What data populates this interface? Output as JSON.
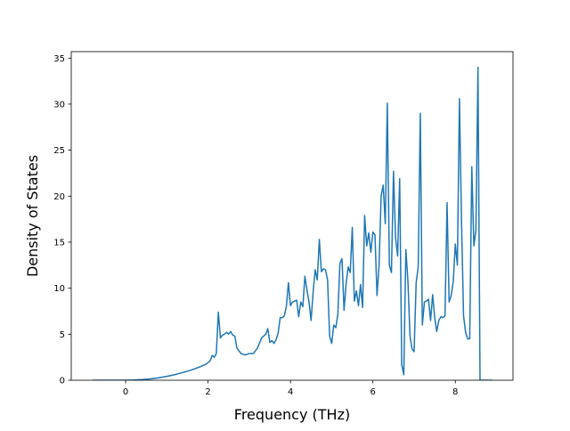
{
  "chart_data": {
    "type": "line",
    "title": "",
    "xlabel": "Frequency (THz)",
    "ylabel": "Density of States",
    "xlim": [
      -1.32,
      9.4
    ],
    "ylim": [
      0,
      35.7
    ],
    "xticks": [
      0,
      2,
      4,
      6,
      8
    ],
    "yticks": [
      0,
      5,
      10,
      15,
      20,
      25,
      30,
      35
    ],
    "grid": false,
    "legend": "none",
    "series": [
      {
        "color": "#1f77b4",
        "points": [
          [
            -0.8,
            0
          ],
          [
            -0.4,
            0
          ],
          [
            0,
            0
          ],
          [
            0.2,
            0.02
          ],
          [
            0.4,
            0.07
          ],
          [
            0.6,
            0.15
          ],
          [
            0.8,
            0.27
          ],
          [
            1.0,
            0.42
          ],
          [
            1.2,
            0.62
          ],
          [
            1.4,
            0.85
          ],
          [
            1.6,
            1.12
          ],
          [
            1.8,
            1.45
          ],
          [
            1.95,
            1.75
          ],
          [
            2.05,
            2.1
          ],
          [
            2.1,
            2.7
          ],
          [
            2.15,
            2.5
          ],
          [
            2.2,
            2.9
          ],
          [
            2.25,
            7.4
          ],
          [
            2.3,
            4.6
          ],
          [
            2.35,
            4.9
          ],
          [
            2.4,
            5.0
          ],
          [
            2.45,
            5.2
          ],
          [
            2.5,
            5.0
          ],
          [
            2.55,
            5.3
          ],
          [
            2.6,
            4.9
          ],
          [
            2.65,
            4.8
          ],
          [
            2.7,
            3.5
          ],
          [
            2.8,
            2.9
          ],
          [
            2.9,
            2.75
          ],
          [
            3.0,
            2.9
          ],
          [
            3.1,
            2.9
          ],
          [
            3.2,
            3.5
          ],
          [
            3.3,
            4.6
          ],
          [
            3.4,
            5.0
          ],
          [
            3.45,
            5.6
          ],
          [
            3.5,
            4.1
          ],
          [
            3.55,
            4.3
          ],
          [
            3.6,
            4.0
          ],
          [
            3.65,
            4.4
          ],
          [
            3.7,
            5.1
          ],
          [
            3.75,
            6.8
          ],
          [
            3.8,
            6.8
          ],
          [
            3.85,
            7.0
          ],
          [
            3.9,
            8.0
          ],
          [
            3.95,
            10.6
          ],
          [
            4.0,
            8.1
          ],
          [
            4.05,
            8.5
          ],
          [
            4.1,
            8.6
          ],
          [
            4.15,
            8.7
          ],
          [
            4.2,
            6.9
          ],
          [
            4.25,
            8.5
          ],
          [
            4.3,
            8.0
          ],
          [
            4.35,
            11.3
          ],
          [
            4.4,
            9.8
          ],
          [
            4.45,
            8.5
          ],
          [
            4.5,
            6.5
          ],
          [
            4.55,
            9.6
          ],
          [
            4.6,
            12.0
          ],
          [
            4.65,
            10.9
          ],
          [
            4.7,
            15.3
          ],
          [
            4.75,
            11.8
          ],
          [
            4.8,
            12.1
          ],
          [
            4.85,
            12.0
          ],
          [
            4.9,
            10.9
          ],
          [
            4.95,
            4.8
          ],
          [
            5.0,
            4.0
          ],
          [
            5.05,
            6.0
          ],
          [
            5.1,
            5.7
          ],
          [
            5.15,
            7.2
          ],
          [
            5.2,
            12.7
          ],
          [
            5.25,
            13.2
          ],
          [
            5.3,
            7.6
          ],
          [
            5.35,
            10.5
          ],
          [
            5.4,
            12.3
          ],
          [
            5.45,
            11.7
          ],
          [
            5.5,
            16.6
          ],
          [
            5.55,
            8.6
          ],
          [
            5.6,
            9.7
          ],
          [
            5.65,
            8.1
          ],
          [
            5.7,
            10.4
          ],
          [
            5.75,
            7.9
          ],
          [
            5.8,
            17.9
          ],
          [
            5.85,
            14.6
          ],
          [
            5.9,
            16.0
          ],
          [
            5.95,
            13.9
          ],
          [
            6.0,
            16.1
          ],
          [
            6.05,
            15.8
          ],
          [
            6.1,
            9.2
          ],
          [
            6.15,
            12.5
          ],
          [
            6.2,
            20.0
          ],
          [
            6.25,
            21.2
          ],
          [
            6.3,
            17.0
          ],
          [
            6.35,
            30.1
          ],
          [
            6.4,
            12.5
          ],
          [
            6.45,
            11.7
          ],
          [
            6.5,
            22.7
          ],
          [
            6.55,
            15.5
          ],
          [
            6.6,
            13.5
          ],
          [
            6.65,
            21.9
          ],
          [
            6.7,
            1.7
          ],
          [
            6.75,
            0.6
          ],
          [
            6.8,
            14.2
          ],
          [
            6.85,
            10.8
          ],
          [
            6.9,
            4.8
          ],
          [
            6.95,
            3.4
          ],
          [
            7.0,
            3.1
          ],
          [
            7.05,
            10.6
          ],
          [
            7.1,
            12.3
          ],
          [
            7.15,
            29.0
          ],
          [
            7.2,
            6.0
          ],
          [
            7.25,
            8.5
          ],
          [
            7.3,
            8.6
          ],
          [
            7.35,
            8.8
          ],
          [
            7.4,
            6.5
          ],
          [
            7.45,
            9.3
          ],
          [
            7.5,
            6.8
          ],
          [
            7.55,
            5.3
          ],
          [
            7.6,
            6.5
          ],
          [
            7.65,
            6.9
          ],
          [
            7.7,
            6.8
          ],
          [
            7.75,
            7.0
          ],
          [
            7.8,
            19.3
          ],
          [
            7.85,
            8.5
          ],
          [
            7.9,
            9.2
          ],
          [
            7.95,
            10.7
          ],
          [
            8.0,
            14.8
          ],
          [
            8.05,
            12.5
          ],
          [
            8.1,
            30.6
          ],
          [
            8.15,
            17.5
          ],
          [
            8.2,
            7.0
          ],
          [
            8.25,
            5.2
          ],
          [
            8.3,
            4.5
          ],
          [
            8.35,
            4.5
          ],
          [
            8.4,
            23.2
          ],
          [
            8.45,
            14.6
          ],
          [
            8.5,
            16.3
          ],
          [
            8.55,
            34.0
          ],
          [
            8.6,
            0
          ],
          [
            8.9,
            0
          ]
        ]
      }
    ]
  }
}
